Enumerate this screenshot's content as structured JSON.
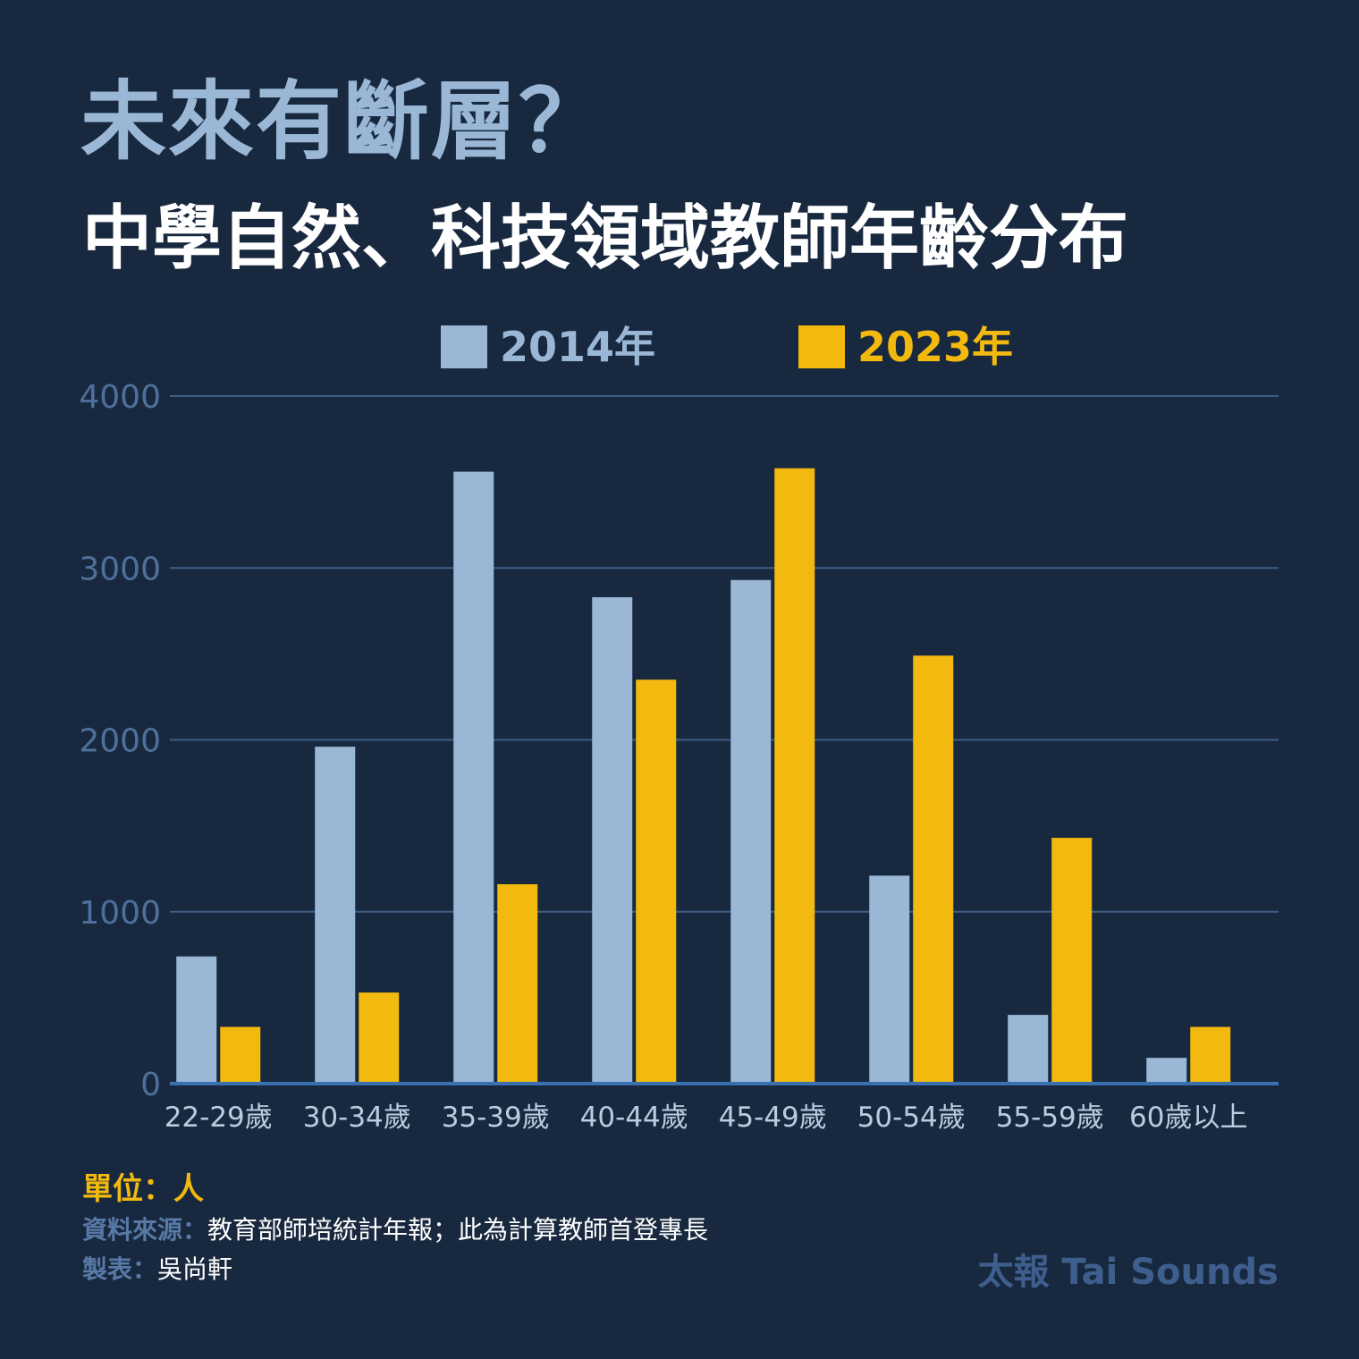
{
  "title": "未來有斷層？",
  "subtitle": "中學自然、科技領域教師年齡分布",
  "colors": {
    "background": "#18293f",
    "series_2014": "#9ab8d6",
    "series_2023": "#f2b90f",
    "gridline": "#3f5d85",
    "axis_text": "#4f6f9c",
    "tick_label": "#b9cce0",
    "brand": "#3e5f8e"
  },
  "footer": {
    "unit": "單位：人",
    "source_label": "資料來源：",
    "source_text": "教育部師培統計年報；此為計算教師首登專長",
    "maker_label": "製表：",
    "maker_text": "吳尚軒",
    "brand": "太報 Tai Sounds"
  },
  "chart_data": {
    "type": "bar",
    "categories": [
      "22-29歲",
      "30-34歲",
      "35-39歲",
      "40-44歲",
      "45-49歲",
      "50-54歲",
      "55-59歲",
      "60歲以上"
    ],
    "series": [
      {
        "name": "2014年",
        "color": "#9ab8d6",
        "values": [
          740,
          1960,
          3560,
          2830,
          2930,
          1210,
          400,
          150
        ]
      },
      {
        "name": "2023年",
        "color": "#f2b90f",
        "values": [
          330,
          530,
          1160,
          2350,
          3580,
          2490,
          1430,
          330
        ]
      }
    ],
    "yticks": [
      0,
      1000,
      2000,
      3000,
      4000
    ],
    "ylim": [
      0,
      4000
    ],
    "grid": true,
    "legend_position": "top-center"
  }
}
